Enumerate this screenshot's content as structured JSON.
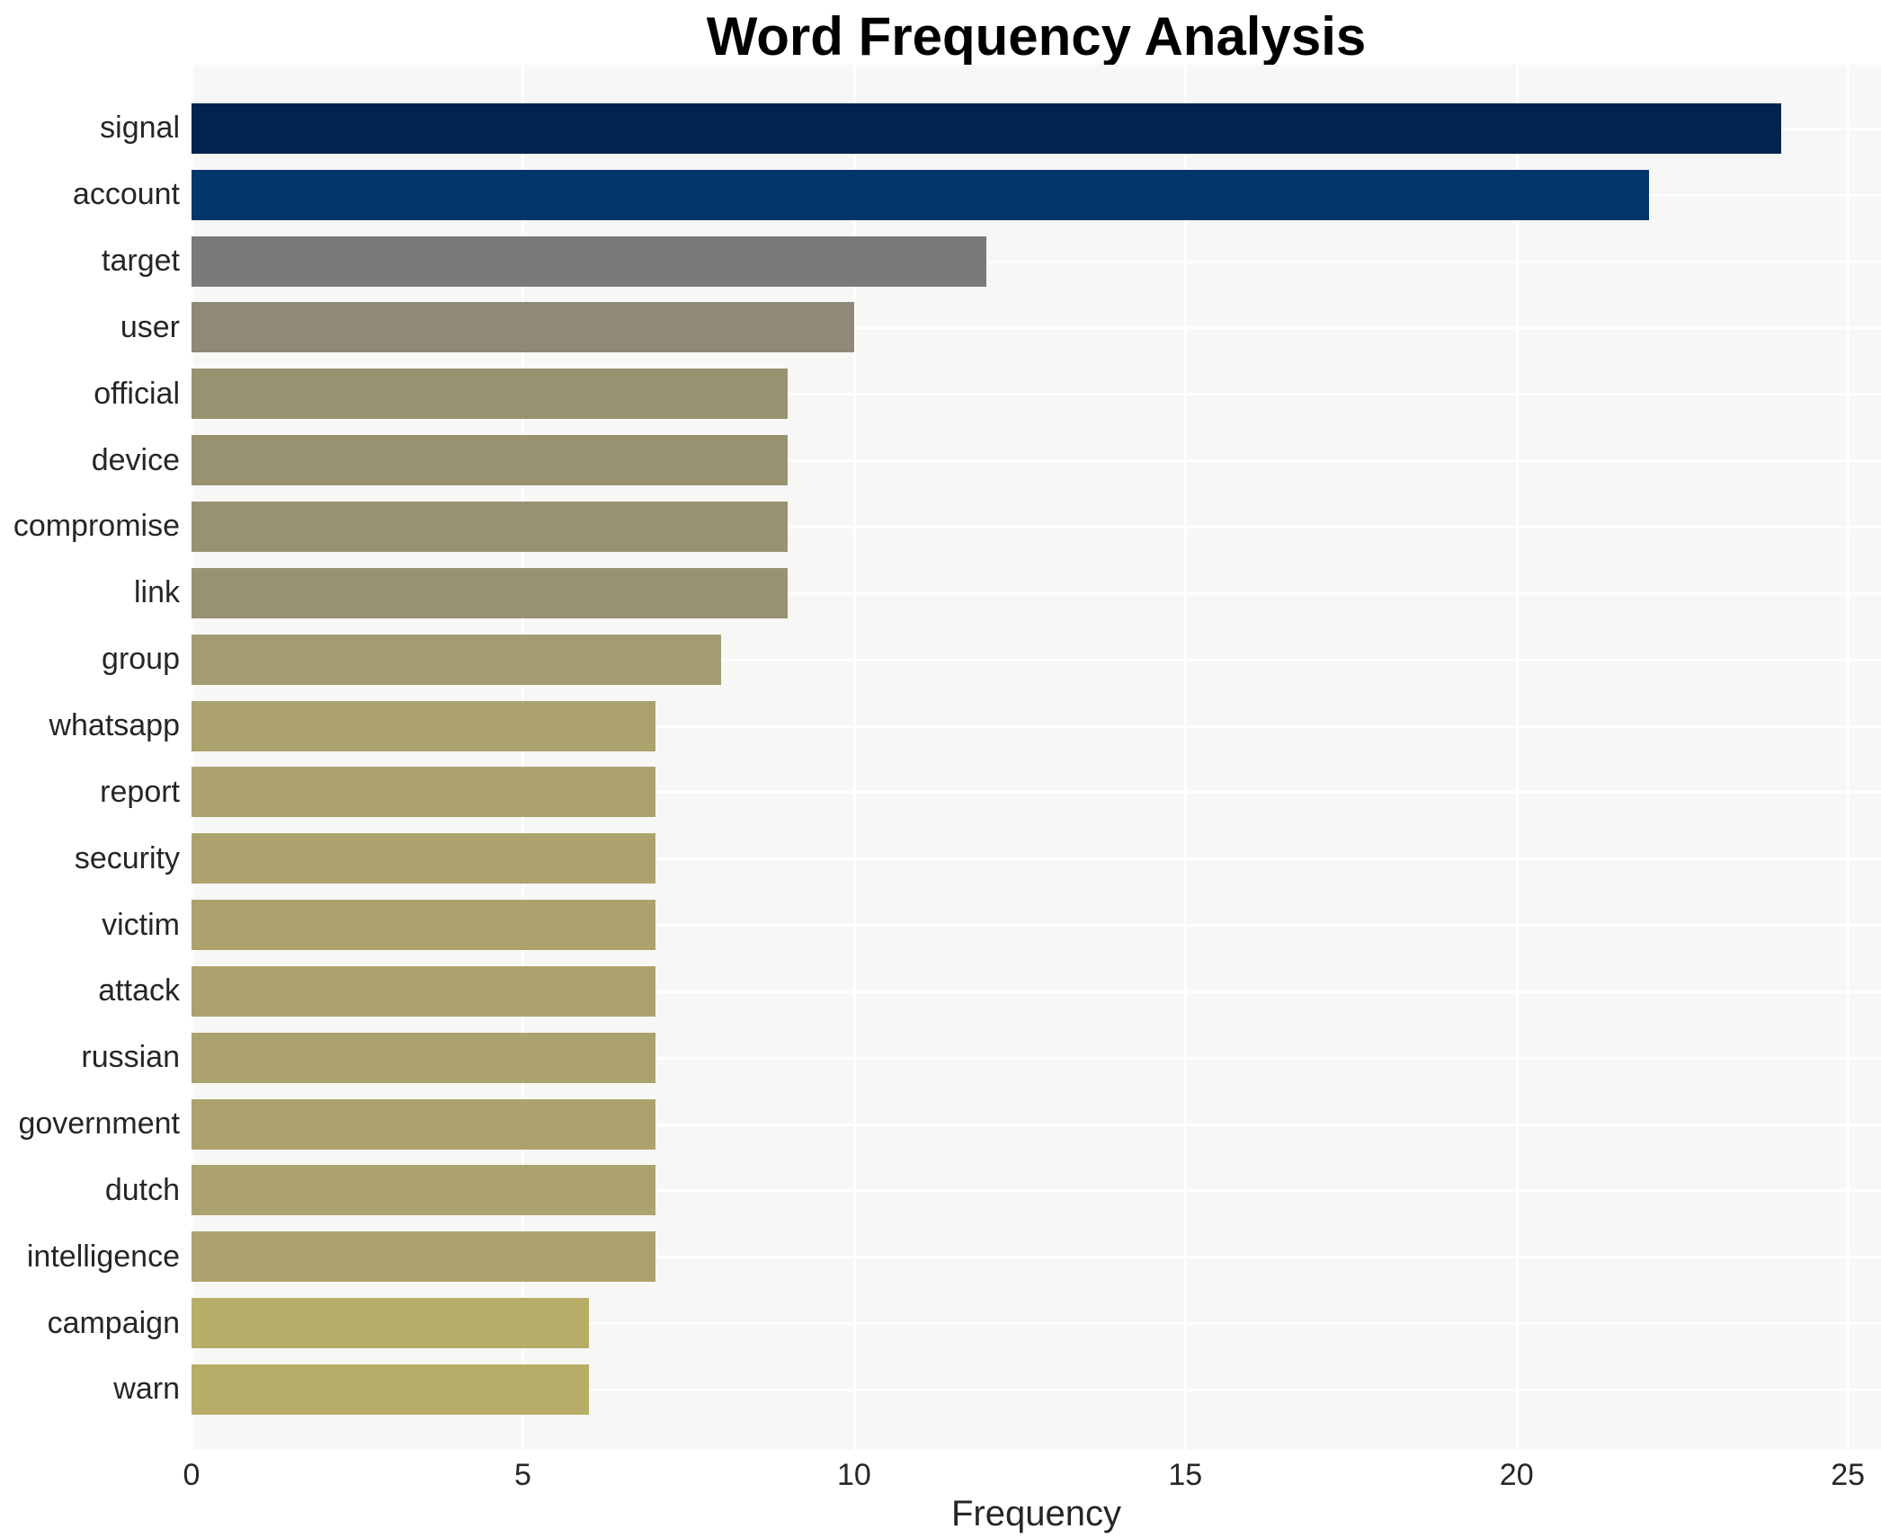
{
  "chart_data": {
    "type": "bar",
    "orientation": "horizontal",
    "title": "Word Frequency Analysis",
    "xlabel": "Frequency",
    "ylabel": "",
    "categories": [
      "signal",
      "account",
      "target",
      "user",
      "official",
      "device",
      "compromise",
      "link",
      "group",
      "whatsapp",
      "report",
      "security",
      "victim",
      "attack",
      "russian",
      "government",
      "dutch",
      "intelligence",
      "campaign",
      "warn"
    ],
    "values": [
      24,
      22,
      12,
      10,
      9,
      9,
      9,
      9,
      8,
      7,
      7,
      7,
      7,
      7,
      7,
      7,
      7,
      7,
      6,
      6
    ],
    "bar_colors": [
      "#02234d",
      "#04366e",
      "#7a7a78",
      "#8f8977",
      "#989271",
      "#989271",
      "#989271",
      "#989271",
      "#a39c72",
      "#aca26e",
      "#aca26e",
      "#aca26e",
      "#aca26e",
      "#aca26e",
      "#aca26e",
      "#aca26e",
      "#aca26e",
      "#aca26e",
      "#b8ac69",
      "#b8ac69"
    ],
    "x_ticks": [
      0,
      5,
      10,
      15,
      20,
      25
    ],
    "xlim": [
      0,
      25.5
    ],
    "grid": true,
    "legend_position": "none",
    "colors": {
      "plot_background": "#f7f7f5",
      "grid_color": "#ffffff",
      "label_color": "#262626",
      "title_color": "#000000",
      "page_background": "#ffffff"
    }
  }
}
